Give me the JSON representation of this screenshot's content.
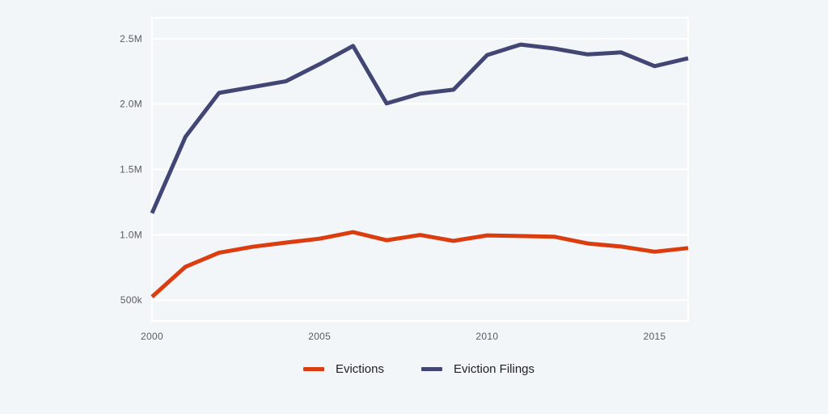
{
  "chart_data": {
    "type": "line",
    "x": [
      2000,
      2001,
      2002,
      2003,
      2004,
      2005,
      2006,
      2007,
      2008,
      2009,
      2010,
      2011,
      2012,
      2013,
      2014,
      2015,
      2016
    ],
    "series": [
      {
        "name": "Evictions",
        "color": "#db3d0f",
        "values": [
          525000,
          755000,
          862000,
          908000,
          940000,
          970000,
          1020000,
          958000,
          998000,
          953000,
          995000,
          990000,
          985000,
          933000,
          910000,
          870000,
          898000
        ]
      },
      {
        "name": "Eviction Filings",
        "color": "#424674",
        "values": [
          1165000,
          1750000,
          2085000,
          2130000,
          2175000,
          2305000,
          2445000,
          2005000,
          2080000,
          2110000,
          2375000,
          2455000,
          2425000,
          2380000,
          2395000,
          2290000,
          2350000
        ]
      }
    ],
    "x_ticks": [
      2000,
      2005,
      2010,
      2015
    ],
    "y_ticks": [
      500000,
      1000000,
      1500000,
      2000000,
      2500000
    ],
    "y_tick_labels": [
      "500k",
      "1.0M",
      "1.5M",
      "2.0M",
      "2.5M"
    ],
    "xlim": [
      2000,
      2016
    ],
    "ylim": [
      340000,
      2660000
    ],
    "grid": true,
    "legend_placement": "bottom-center",
    "title": "",
    "xlabel": "",
    "ylabel": ""
  }
}
